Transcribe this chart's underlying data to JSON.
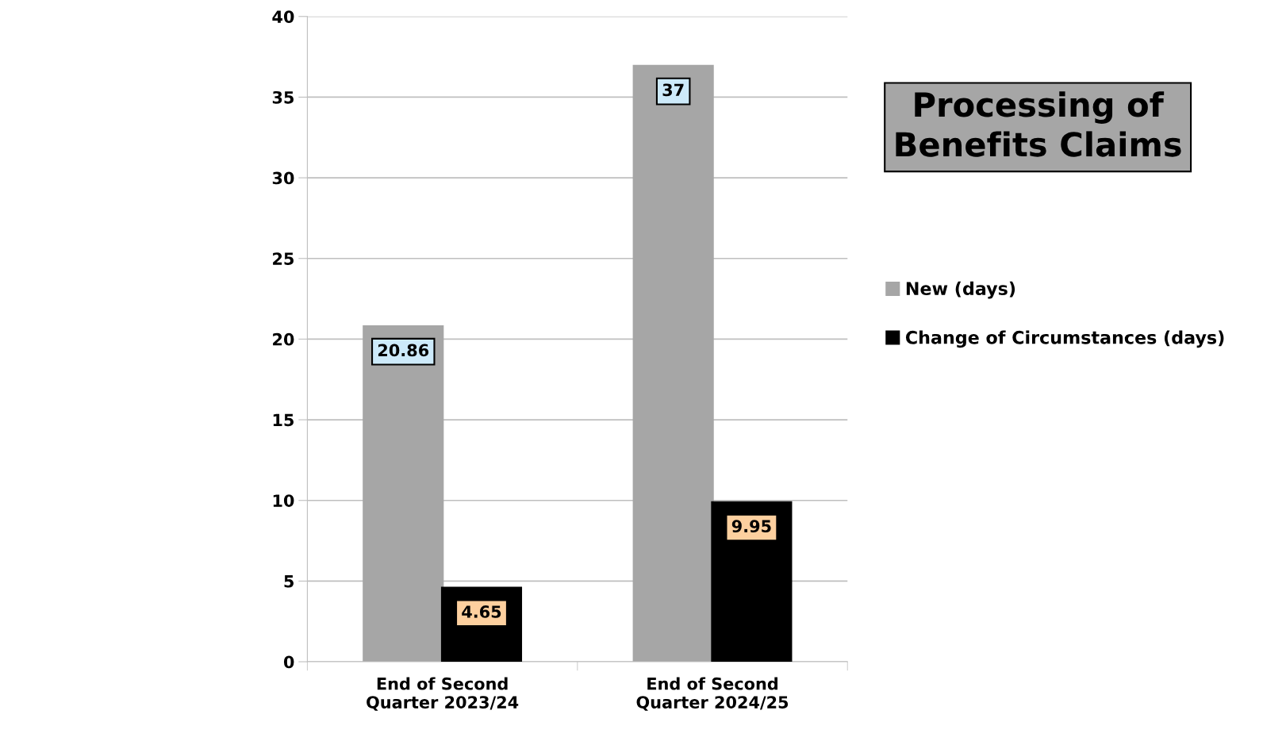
{
  "chart_data": {
    "type": "bar",
    "title": "Processing of\nBenefits Claims",
    "categories": [
      "End of Second\nQuarter 2023/24",
      "End of Second\nQuarter 2024/25"
    ],
    "series": [
      {
        "name": "New (days)",
        "color": "#a6a6a6",
        "values": [
          20.86,
          37
        ]
      },
      {
        "name": "Change of Circumstances (days)",
        "color": "#000000",
        "values": [
          4.65,
          9.95
        ]
      }
    ],
    "ylim": [
      0,
      40
    ],
    "yticks": [
      0,
      5,
      10,
      15,
      20,
      25,
      30,
      35,
      40
    ],
    "grid": "y",
    "legend": "right",
    "data_labels": true
  }
}
